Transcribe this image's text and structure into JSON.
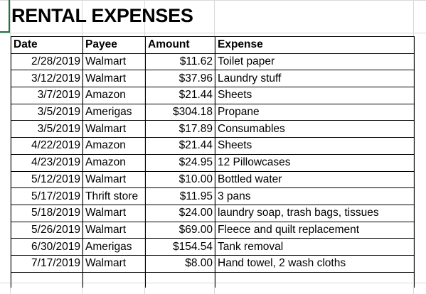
{
  "title": "RENTAL EXPENSES",
  "headers": {
    "date": "Date",
    "payee": "Payee",
    "amount": "Amount",
    "expense": "Expense"
  },
  "rows": [
    {
      "date": "2/28/2019",
      "payee": "Walmart",
      "amount": "$11.62",
      "expense": "Toilet paper"
    },
    {
      "date": "3/12/2019",
      "payee": "Walmart",
      "amount": "$37.96",
      "expense": "Laundry stuff"
    },
    {
      "date": "3/7/2019",
      "payee": "Amazon",
      "amount": "$21.44",
      "expense": "Sheets"
    },
    {
      "date": "3/5/2019",
      "payee": "Amerigas",
      "amount": "$304.18",
      "expense": "Propane"
    },
    {
      "date": "3/5/2019",
      "payee": "Walmart",
      "amount": "$17.89",
      "expense": "Consumables"
    },
    {
      "date": "4/22/2019",
      "payee": "Amazon",
      "amount": "$21.44",
      "expense": "Sheets"
    },
    {
      "date": "4/23/2019",
      "payee": "Amazon",
      "amount": "$24.95",
      "expense": "12 Pillowcases"
    },
    {
      "date": "5/12/2019",
      "payee": "Walmart",
      "amount": "$10.00",
      "expense": "Bottled water"
    },
    {
      "date": "5/17/2019",
      "payee": "Thrift store",
      "amount": "$11.95",
      "expense": "3 pans"
    },
    {
      "date": "5/18/2019",
      "payee": "Walmart",
      "amount": "$24.00",
      "expense": "laundry soap, trash bags, tissues"
    },
    {
      "date": "5/26/2019",
      "payee": "Walmart",
      "amount": "$69.00",
      "expense": "Fleece and quilt replacement"
    },
    {
      "date": "6/30/2019",
      "payee": "Amerigas",
      "amount": "$154.54",
      "expense": "Tank removal"
    },
    {
      "date": "7/17/2019",
      "payee": "Walmart",
      "amount": "$8.00",
      "expense": "Hand towel, 2 wash cloths"
    }
  ],
  "colors": {
    "gridline": "#d9d9d9",
    "active_cell_border": "#217346",
    "table_border": "#000000"
  }
}
